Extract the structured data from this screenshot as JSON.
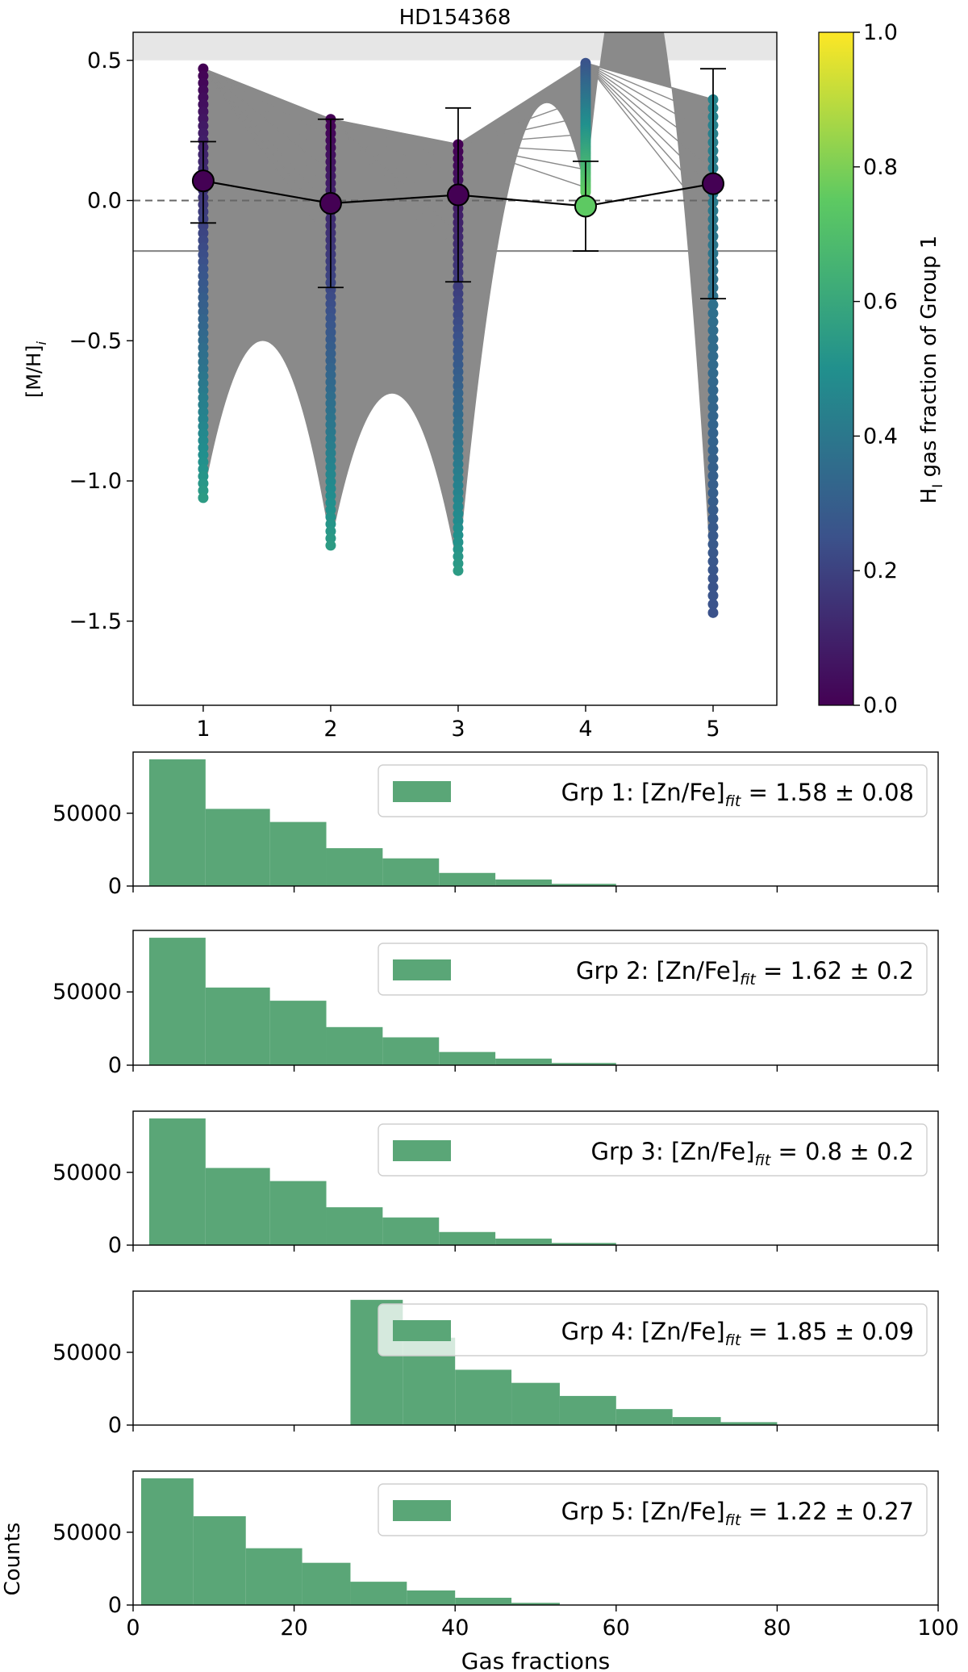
{
  "colors": {
    "line": "#8a8a8a",
    "hist": "#5aa677",
    "legend_bg": "#ffffff",
    "legend_border": "#cfcfcf",
    "band": "#e6e6e6",
    "colormap": [
      "#440154",
      "#3b528b",
      "#21908d",
      "#5dc962",
      "#fde725"
    ]
  },
  "chart_data": [
    {
      "type": "scatter",
      "title": "HD154368",
      "ylabel": "[M/H]",
      "ylabel_sub": "i",
      "xlim": [
        0.45,
        5.5
      ],
      "ylim": [
        -1.8,
        0.6
      ],
      "xticks": [
        "1",
        "2",
        "3",
        "4",
        "5"
      ],
      "yticks": [
        "0.5",
        "0.0",
        "−0.5",
        "−1.0",
        "−1.5"
      ],
      "ytick_values": [
        0.5,
        0.0,
        -0.5,
        -1.0,
        -1.5
      ],
      "shaded_band": [
        0.5,
        0.6
      ],
      "solid_hline": -0.18,
      "dashed_hline": 0.0,
      "points": [
        {
          "x": 1,
          "y": 0.07,
          "yerr_low": -0.08,
          "yerr_high": 0.21,
          "frac": 0.0
        },
        {
          "x": 2,
          "y": -0.01,
          "yerr_low": -0.31,
          "yerr_high": 0.29,
          "frac": 0.0
        },
        {
          "x": 3,
          "y": 0.02,
          "yerr_low": -0.29,
          "yerr_high": 0.33,
          "frac": 0.0
        },
        {
          "x": 4,
          "y": -0.02,
          "yerr_low": -0.18,
          "yerr_high": 0.14,
          "frac": 0.75
        },
        {
          "x": 5,
          "y": 0.06,
          "yerr_low": -0.35,
          "yerr_high": 0.47,
          "frac": 0.0
        }
      ],
      "columns": [
        {
          "x": 1,
          "top": 0.47,
          "bottom": -1.06,
          "frac_top": 0.0,
          "frac_bottom": 0.55
        },
        {
          "x": 2,
          "top": 0.29,
          "bottom": -1.23,
          "frac_top": 0.0,
          "frac_bottom": 0.55
        },
        {
          "x": 3,
          "top": 0.2,
          "bottom": -1.32,
          "frac_top": 0.0,
          "frac_bottom": 0.55
        },
        {
          "x": 4,
          "top": 0.49,
          "bottom": 0.03,
          "frac_top": 0.25,
          "frac_bottom": 0.75
        },
        {
          "x": 5,
          "top": 0.36,
          "bottom": -1.47,
          "frac_top": 0.45,
          "frac_bottom": 0.25
        }
      ],
      "colorbar": {
        "label": "H",
        "label_sub": "I",
        "label_rest": " gas fraction of Group 1",
        "ticks": [
          "0.0",
          "0.2",
          "0.4",
          "0.6",
          "0.8",
          "1.0"
        ],
        "tick_values": [
          0.0,
          0.2,
          0.4,
          0.6,
          0.8,
          1.0
        ],
        "range": [
          0.0,
          1.0
        ]
      }
    },
    {
      "type": "bar",
      "xlim": [
        0,
        100
      ],
      "ylim": [
        0,
        92000
      ],
      "yticks": [
        "0",
        "50000"
      ],
      "ytick_values": [
        0,
        50000
      ],
      "legend_prefix": "Grp 1: [Zn/Fe]",
      "legend_sub": "fit",
      "legend_value": " = 1.58 ± 0.08",
      "bins": [
        {
          "x0": 2,
          "x1": 9,
          "count": 87000
        },
        {
          "x0": 9,
          "x1": 17,
          "count": 53000
        },
        {
          "x0": 17,
          "x1": 24,
          "count": 44000
        },
        {
          "x0": 24,
          "x1": 31,
          "count": 26000
        },
        {
          "x0": 31,
          "x1": 38,
          "count": 19000
        },
        {
          "x0": 38,
          "x1": 45,
          "count": 9000
        },
        {
          "x0": 45,
          "x1": 52,
          "count": 4500
        },
        {
          "x0": 52,
          "x1": 60,
          "count": 1500
        }
      ]
    },
    {
      "type": "bar",
      "xlim": [
        0,
        100
      ],
      "ylim": [
        0,
        92000
      ],
      "yticks": [
        "0",
        "50000"
      ],
      "ytick_values": [
        0,
        50000
      ],
      "legend_prefix": "Grp 2: [Zn/Fe]",
      "legend_sub": "fit",
      "legend_value": " = 1.62 ± 0.2",
      "bins": [
        {
          "x0": 2,
          "x1": 9,
          "count": 87000
        },
        {
          "x0": 9,
          "x1": 17,
          "count": 53000
        },
        {
          "x0": 17,
          "x1": 24,
          "count": 44000
        },
        {
          "x0": 24,
          "x1": 31,
          "count": 26000
        },
        {
          "x0": 31,
          "x1": 38,
          "count": 19000
        },
        {
          "x0": 38,
          "x1": 45,
          "count": 9000
        },
        {
          "x0": 45,
          "x1": 52,
          "count": 4500
        },
        {
          "x0": 52,
          "x1": 60,
          "count": 1500
        }
      ]
    },
    {
      "type": "bar",
      "xlim": [
        0,
        100
      ],
      "ylim": [
        0,
        92000
      ],
      "yticks": [
        "0",
        "50000"
      ],
      "ytick_values": [
        0,
        50000
      ],
      "legend_prefix": "Grp 3: [Zn/Fe]",
      "legend_sub": "fit",
      "legend_value": " = 0.8 ± 0.2",
      "bins": [
        {
          "x0": 2,
          "x1": 9,
          "count": 87000
        },
        {
          "x0": 9,
          "x1": 17,
          "count": 53000
        },
        {
          "x0": 17,
          "x1": 24,
          "count": 44000
        },
        {
          "x0": 24,
          "x1": 31,
          "count": 26000
        },
        {
          "x0": 31,
          "x1": 38,
          "count": 19000
        },
        {
          "x0": 38,
          "x1": 45,
          "count": 9000
        },
        {
          "x0": 45,
          "x1": 52,
          "count": 4500
        },
        {
          "x0": 52,
          "x1": 60,
          "count": 1500
        }
      ]
    },
    {
      "type": "bar",
      "xlim": [
        0,
        100
      ],
      "ylim": [
        0,
        92000
      ],
      "yticks": [
        "0",
        "50000"
      ],
      "ytick_values": [
        0,
        50000
      ],
      "legend_prefix": "Grp 4: [Zn/Fe]",
      "legend_sub": "fit",
      "legend_value": " = 1.85 ± 0.09",
      "bins": [
        {
          "x0": 27,
          "x1": 33.5,
          "count": 86000
        },
        {
          "x0": 33.5,
          "x1": 40,
          "count": 60000
        },
        {
          "x0": 40,
          "x1": 47,
          "count": 38000
        },
        {
          "x0": 47,
          "x1": 53,
          "count": 29000
        },
        {
          "x0": 53,
          "x1": 60,
          "count": 20000
        },
        {
          "x0": 60,
          "x1": 67,
          "count": 11000
        },
        {
          "x0": 67,
          "x1": 73,
          "count": 5500
        },
        {
          "x0": 73,
          "x1": 80,
          "count": 2000
        }
      ]
    },
    {
      "type": "bar",
      "xlim": [
        0,
        100
      ],
      "ylim": [
        0,
        92000
      ],
      "yticks": [
        "0",
        "50000"
      ],
      "ytick_values": [
        0,
        50000
      ],
      "xticks": [
        "0",
        "20",
        "40",
        "60",
        "80",
        "100"
      ],
      "xtick_values": [
        0,
        20,
        40,
        60,
        80,
        100
      ],
      "xlabel": "Gas fractions",
      "ylabel": "Counts",
      "legend_prefix": "Grp 5: [Zn/Fe]",
      "legend_sub": "fit",
      "legend_value": " = 1.22 ± 0.27",
      "bins": [
        {
          "x0": 1,
          "x1": 7.5,
          "count": 87000
        },
        {
          "x0": 7.5,
          "x1": 14,
          "count": 61000
        },
        {
          "x0": 14,
          "x1": 21,
          "count": 39000
        },
        {
          "x0": 21,
          "x1": 27,
          "count": 29000
        },
        {
          "x0": 27,
          "x1": 34,
          "count": 16000
        },
        {
          "x0": 34,
          "x1": 40,
          "count": 10000
        },
        {
          "x0": 40,
          "x1": 47,
          "count": 5000
        },
        {
          "x0": 47,
          "x1": 53,
          "count": 1500
        }
      ]
    }
  ]
}
